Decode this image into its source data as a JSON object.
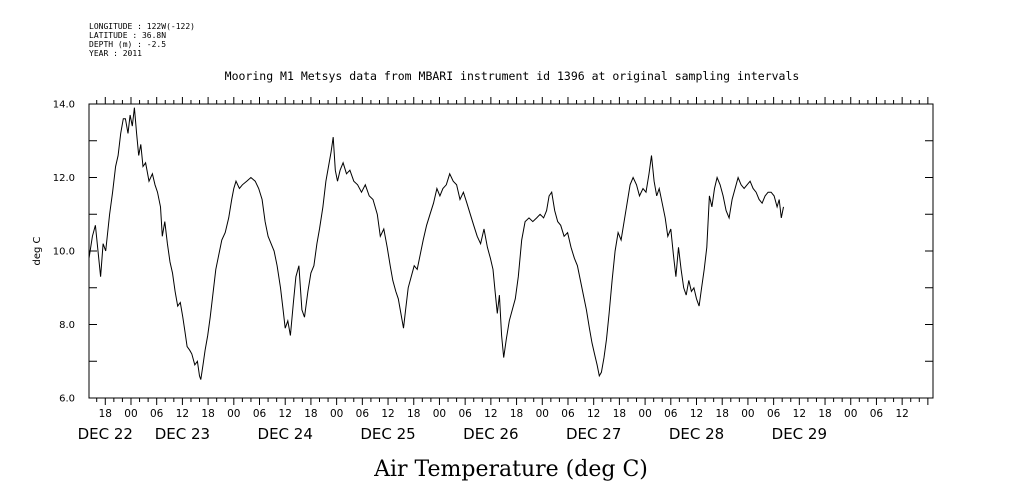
{
  "header": {
    "longitude": "LONGITUDE : 122W(-122)",
    "latitude": "LATITUDE : 36.8N",
    "depth": "DEPTH (m) : -2.5",
    "year": "YEAR : 2011"
  },
  "chart_data": {
    "type": "line",
    "title": "Mooring M1 Metsys data from MBARI instrument id 1396 at original sampling intervals",
    "xlabel": "Air Temperature (deg C)",
    "ylabel": "deg C",
    "ylim": [
      6.0,
      14.0
    ],
    "xlim": [
      -9.8,
      187.2
    ],
    "y_ticks": [
      "6.0",
      "8.0",
      "10.0",
      "12.0",
      "14.0"
    ],
    "x_hour_ticks": [
      {
        "h": -6,
        "label": "18"
      },
      {
        "h": 0,
        "label": "00"
      },
      {
        "h": 6,
        "label": "06"
      },
      {
        "h": 12,
        "label": "12"
      },
      {
        "h": 18,
        "label": "18"
      },
      {
        "h": 24,
        "label": "00"
      },
      {
        "h": 30,
        "label": "06"
      },
      {
        "h": 36,
        "label": "12"
      },
      {
        "h": 42,
        "label": "18"
      },
      {
        "h": 48,
        "label": "00"
      },
      {
        "h": 54,
        "label": "06"
      },
      {
        "h": 60,
        "label": "12"
      },
      {
        "h": 66,
        "label": "18"
      },
      {
        "h": 72,
        "label": "00"
      },
      {
        "h": 78,
        "label": "06"
      },
      {
        "h": 84,
        "label": "12"
      },
      {
        "h": 90,
        "label": "18"
      },
      {
        "h": 96,
        "label": "00"
      },
      {
        "h": 102,
        "label": "06"
      },
      {
        "h": 108,
        "label": "12"
      },
      {
        "h": 114,
        "label": "18"
      },
      {
        "h": 120,
        "label": "00"
      },
      {
        "h": 126,
        "label": "06"
      },
      {
        "h": 132,
        "label": "12"
      },
      {
        "h": 138,
        "label": "18"
      },
      {
        "h": 144,
        "label": "00"
      },
      {
        "h": 150,
        "label": "06"
      },
      {
        "h": 156,
        "label": "12"
      },
      {
        "h": 162,
        "label": "18"
      },
      {
        "h": 168,
        "label": "00"
      },
      {
        "h": 174,
        "label": "06"
      },
      {
        "h": 180,
        "label": "12"
      }
    ],
    "x_day_labels": [
      {
        "h": -6,
        "label": "DEC 22"
      },
      {
        "h": 12,
        "label": "DEC 23"
      },
      {
        "h": 36,
        "label": "DEC 24"
      },
      {
        "h": 60,
        "label": "DEC 25"
      },
      {
        "h": 84,
        "label": "DEC 26"
      },
      {
        "h": 108,
        "label": "DEC 27"
      },
      {
        "h": 132,
        "label": "DEC 28"
      },
      {
        "h": 156,
        "label": "DEC 29"
      }
    ],
    "series": [
      {
        "values": [
          [
            -9.8,
            9.8
          ],
          [
            -9.0,
            10.4
          ],
          [
            -8.3,
            10.7
          ],
          [
            -7.7,
            10.0
          ],
          [
            -7.1,
            9.3
          ],
          [
            -6.5,
            10.2
          ],
          [
            -5.9,
            10.0
          ],
          [
            -5.0,
            11.0
          ],
          [
            -4.3,
            11.6
          ],
          [
            -3.6,
            12.3
          ],
          [
            -3.0,
            12.6
          ],
          [
            -2.4,
            13.2
          ],
          [
            -1.8,
            13.6
          ],
          [
            -1.3,
            13.6
          ],
          [
            -0.7,
            13.2
          ],
          [
            -0.2,
            13.7
          ],
          [
            0.3,
            13.4
          ],
          [
            0.8,
            13.9
          ],
          [
            1.3,
            13.2
          ],
          [
            1.8,
            12.6
          ],
          [
            2.3,
            12.9
          ],
          [
            2.8,
            12.3
          ],
          [
            3.4,
            12.4
          ],
          [
            4.2,
            11.9
          ],
          [
            5.0,
            12.1
          ],
          [
            5.6,
            11.8
          ],
          [
            6.2,
            11.6
          ],
          [
            6.9,
            11.2
          ],
          [
            7.3,
            10.4
          ],
          [
            7.9,
            10.8
          ],
          [
            8.5,
            10.2
          ],
          [
            9.1,
            9.7
          ],
          [
            9.7,
            9.4
          ],
          [
            10.3,
            8.9
          ],
          [
            10.9,
            8.5
          ],
          [
            11.5,
            8.6
          ],
          [
            12.1,
            8.2
          ],
          [
            12.6,
            7.8
          ],
          [
            13.1,
            7.4
          ],
          [
            13.7,
            7.3
          ],
          [
            14.2,
            7.2
          ],
          [
            14.9,
            6.9
          ],
          [
            15.5,
            7.0
          ],
          [
            16.0,
            6.6
          ],
          [
            16.3,
            6.5
          ],
          [
            16.8,
            6.9
          ],
          [
            17.3,
            7.3
          ],
          [
            17.9,
            7.7
          ],
          [
            18.5,
            8.2
          ],
          [
            19.1,
            8.8
          ],
          [
            19.8,
            9.5
          ],
          [
            20.5,
            9.9
          ],
          [
            21.2,
            10.3
          ],
          [
            22.0,
            10.5
          ],
          [
            22.8,
            10.9
          ],
          [
            23.5,
            11.4
          ],
          [
            24.0,
            11.7
          ],
          [
            24.5,
            11.9
          ],
          [
            25.3,
            11.7
          ],
          [
            26.0,
            11.8
          ],
          [
            27.0,
            11.9
          ],
          [
            28.0,
            12.0
          ],
          [
            29.0,
            11.9
          ],
          [
            29.8,
            11.7
          ],
          [
            30.6,
            11.4
          ],
          [
            31.3,
            10.8
          ],
          [
            32.0,
            10.4
          ],
          [
            32.7,
            10.2
          ],
          [
            33.4,
            10.0
          ],
          [
            34.1,
            9.6
          ],
          [
            34.9,
            9.0
          ],
          [
            35.5,
            8.4
          ],
          [
            36.0,
            7.9
          ],
          [
            36.6,
            8.1
          ],
          [
            37.2,
            7.7
          ],
          [
            37.9,
            8.6
          ],
          [
            38.5,
            9.3
          ],
          [
            39.2,
            9.6
          ],
          [
            39.9,
            8.4
          ],
          [
            40.5,
            8.2
          ],
          [
            41.3,
            8.9
          ],
          [
            42.0,
            9.4
          ],
          [
            42.7,
            9.6
          ],
          [
            43.4,
            10.2
          ],
          [
            44.0,
            10.6
          ],
          [
            44.8,
            11.2
          ],
          [
            45.5,
            11.9
          ],
          [
            46.1,
            12.3
          ],
          [
            46.7,
            12.7
          ],
          [
            47.2,
            13.1
          ],
          [
            47.7,
            12.2
          ],
          [
            48.2,
            11.9
          ],
          [
            48.8,
            12.2
          ],
          [
            49.5,
            12.4
          ],
          [
            50.3,
            12.1
          ],
          [
            51.1,
            12.2
          ],
          [
            52.0,
            11.9
          ],
          [
            52.9,
            11.8
          ],
          [
            53.8,
            11.6
          ],
          [
            54.7,
            11.8
          ],
          [
            55.6,
            11.5
          ],
          [
            56.5,
            11.4
          ],
          [
            57.5,
            11.0
          ],
          [
            58.2,
            10.4
          ],
          [
            59.0,
            10.6
          ],
          [
            59.8,
            10.1
          ],
          [
            60.5,
            9.6
          ],
          [
            61.1,
            9.2
          ],
          [
            61.8,
            8.9
          ],
          [
            62.4,
            8.7
          ],
          [
            63.0,
            8.3
          ],
          [
            63.6,
            7.9
          ],
          [
            64.1,
            8.4
          ],
          [
            64.7,
            9.0
          ],
          [
            65.4,
            9.3
          ],
          [
            66.1,
            9.6
          ],
          [
            66.8,
            9.5
          ],
          [
            67.5,
            9.9
          ],
          [
            68.2,
            10.3
          ],
          [
            69.0,
            10.7
          ],
          [
            69.8,
            11.0
          ],
          [
            70.6,
            11.3
          ],
          [
            71.4,
            11.7
          ],
          [
            72.1,
            11.5
          ],
          [
            72.8,
            11.7
          ],
          [
            73.6,
            11.8
          ],
          [
            74.4,
            12.1
          ],
          [
            75.2,
            11.9
          ],
          [
            76.0,
            11.8
          ],
          [
            76.8,
            11.4
          ],
          [
            77.6,
            11.6
          ],
          [
            78.4,
            11.3
          ],
          [
            79.2,
            11.0
          ],
          [
            80.0,
            10.7
          ],
          [
            80.8,
            10.4
          ],
          [
            81.6,
            10.2
          ],
          [
            82.4,
            10.6
          ],
          [
            83.2,
            10.1
          ],
          [
            83.9,
            9.8
          ],
          [
            84.5,
            9.5
          ],
          [
            85.0,
            8.9
          ],
          [
            85.5,
            8.3
          ],
          [
            86.0,
            8.8
          ],
          [
            86.5,
            7.7
          ],
          [
            87.0,
            7.1
          ],
          [
            87.6,
            7.6
          ],
          [
            88.3,
            8.1
          ],
          [
            89.0,
            8.4
          ],
          [
            89.7,
            8.7
          ],
          [
            90.4,
            9.3
          ],
          [
            91.2,
            10.3
          ],
          [
            92.0,
            10.8
          ],
          [
            92.9,
            10.9
          ],
          [
            93.8,
            10.8
          ],
          [
            94.7,
            10.9
          ],
          [
            95.5,
            11.0
          ],
          [
            96.3,
            10.9
          ],
          [
            97.0,
            11.1
          ],
          [
            97.6,
            11.5
          ],
          [
            98.2,
            11.6
          ],
          [
            98.9,
            11.1
          ],
          [
            99.6,
            10.8
          ],
          [
            100.3,
            10.7
          ],
          [
            101.1,
            10.4
          ],
          [
            101.9,
            10.5
          ],
          [
            102.7,
            10.1
          ],
          [
            103.5,
            9.8
          ],
          [
            104.2,
            9.6
          ],
          [
            104.9,
            9.2
          ],
          [
            105.6,
            8.8
          ],
          [
            106.3,
            8.4
          ],
          [
            107.0,
            7.9
          ],
          [
            107.6,
            7.5
          ],
          [
            108.2,
            7.2
          ],
          [
            108.8,
            6.9
          ],
          [
            109.3,
            6.6
          ],
          [
            109.8,
            6.7
          ],
          [
            110.4,
            7.1
          ],
          [
            111.0,
            7.6
          ],
          [
            111.6,
            8.3
          ],
          [
            112.3,
            9.2
          ],
          [
            113.0,
            10.0
          ],
          [
            113.7,
            10.5
          ],
          [
            114.4,
            10.3
          ],
          [
            115.1,
            10.8
          ],
          [
            115.8,
            11.3
          ],
          [
            116.5,
            11.8
          ],
          [
            117.2,
            12.0
          ],
          [
            118.0,
            11.8
          ],
          [
            118.7,
            11.5
          ],
          [
            119.5,
            11.7
          ],
          [
            120.2,
            11.6
          ],
          [
            120.9,
            12.1
          ],
          [
            121.5,
            12.6
          ],
          [
            122.1,
            11.9
          ],
          [
            122.7,
            11.5
          ],
          [
            123.3,
            11.7
          ],
          [
            124.0,
            11.3
          ],
          [
            124.7,
            10.9
          ],
          [
            125.3,
            10.4
          ],
          [
            126.0,
            10.6
          ],
          [
            126.6,
            9.9
          ],
          [
            127.2,
            9.3
          ],
          [
            127.8,
            10.1
          ],
          [
            128.4,
            9.5
          ],
          [
            129.0,
            9.0
          ],
          [
            129.6,
            8.8
          ],
          [
            130.2,
            9.2
          ],
          [
            130.8,
            8.9
          ],
          [
            131.4,
            9.0
          ],
          [
            132.0,
            8.7
          ],
          [
            132.6,
            8.5
          ],
          [
            133.2,
            9.0
          ],
          [
            133.8,
            9.5
          ],
          [
            134.4,
            10.1
          ],
          [
            135.0,
            11.5
          ],
          [
            135.6,
            11.2
          ],
          [
            136.2,
            11.7
          ],
          [
            136.8,
            12.0
          ],
          [
            137.5,
            11.8
          ],
          [
            138.2,
            11.5
          ],
          [
            138.9,
            11.1
          ],
          [
            139.6,
            10.9
          ],
          [
            140.3,
            11.4
          ],
          [
            141.0,
            11.7
          ],
          [
            141.7,
            12.0
          ],
          [
            142.4,
            11.8
          ],
          [
            143.1,
            11.7
          ],
          [
            143.8,
            11.8
          ],
          [
            144.5,
            11.9
          ],
          [
            145.2,
            11.7
          ],
          [
            145.9,
            11.6
          ],
          [
            146.6,
            11.4
          ],
          [
            147.3,
            11.3
          ],
          [
            148.0,
            11.5
          ],
          [
            148.7,
            11.6
          ],
          [
            149.4,
            11.6
          ],
          [
            150.1,
            11.5
          ],
          [
            150.8,
            11.2
          ],
          [
            151.3,
            11.4
          ],
          [
            151.8,
            10.9
          ],
          [
            152.3,
            11.2
          ]
        ]
      }
    ]
  }
}
